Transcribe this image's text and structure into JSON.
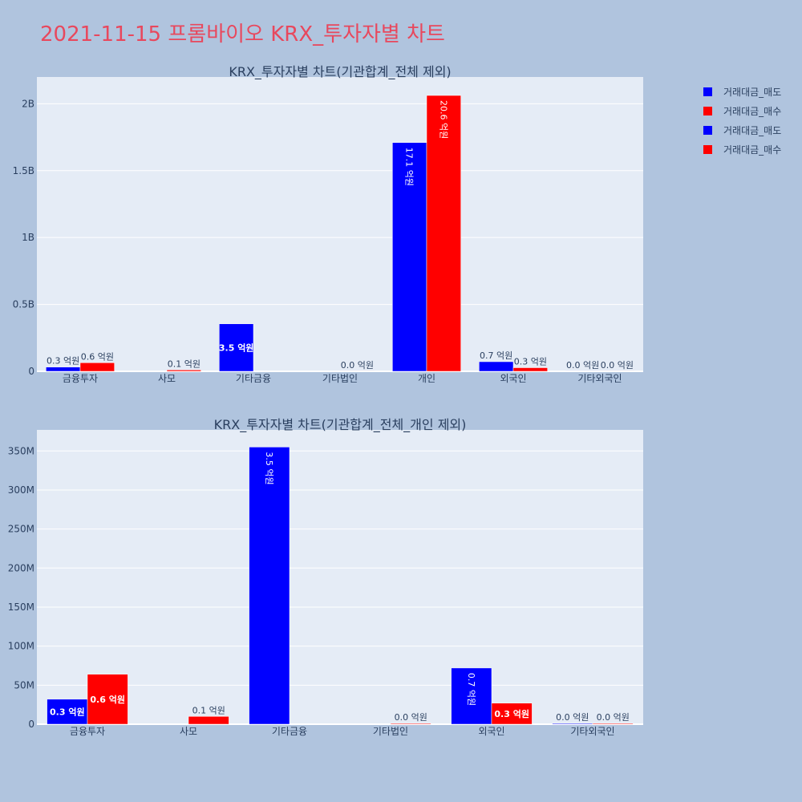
{
  "title": "2021-11-15 프롬바이오 KRX_투자자별 차트",
  "colors": {
    "sell": "#0000ff",
    "buy": "#ff0000",
    "title": "#e8485d",
    "background": "#b0c4de",
    "plot": "#e5ecf6"
  },
  "legend": [
    "거래대금_매도",
    "거래대금_매수",
    "거래대금_매도",
    "거래대금_매수"
  ],
  "chart_data": [
    {
      "type": "bar",
      "title": "KRX_투자자별 차트(기관합계_전체 제외)",
      "categories": [
        "금융투자",
        "사모",
        "기타금융",
        "기타법인",
        "개인",
        "외국인",
        "기타외국인"
      ],
      "ylim": [
        0,
        2200000000
      ],
      "yticks": [
        0,
        500000000,
        1000000000,
        1500000000,
        2000000000
      ],
      "ytick_labels": [
        "0",
        "0.5B",
        "1B",
        "1.5B",
        "2B"
      ],
      "grid": true,
      "series": [
        {
          "name": "거래대금_매도",
          "values": [
            32000000,
            0,
            355000000,
            0,
            1710000000,
            72000000,
            1000000
          ],
          "labels": [
            "0.3 억원",
            "",
            "3.5 억원",
            "",
            "17.1 억원",
            "0.7 억원",
            "0.0 억원"
          ]
        },
        {
          "name": "거래대금_매수",
          "values": [
            64000000,
            10000000,
            0,
            1000000,
            2062000000,
            27000000,
            1000000
          ],
          "labels": [
            "0.6 억원",
            "0.1 억원",
            "",
            "0.0 억원",
            "20.6 억원",
            "0.3 억원",
            "0.0 억원"
          ]
        }
      ]
    },
    {
      "type": "bar",
      "title": "KRX_투자자별 차트(기관합계_전체_개인 제외)",
      "categories": [
        "금융투자",
        "사모",
        "기타금융",
        "기타법인",
        "외국인",
        "기타외국인"
      ],
      "ylim": [
        0,
        377000000
      ],
      "yticks": [
        0,
        50000000,
        100000000,
        150000000,
        200000000,
        250000000,
        300000000,
        350000000
      ],
      "ytick_labels": [
        "0",
        "50M",
        "100M",
        "150M",
        "200M",
        "250M",
        "300M",
        "350M"
      ],
      "grid": true,
      "series": [
        {
          "name": "거래대금_매도",
          "values": [
            32000000,
            0,
            355000000,
            0,
            72000000,
            1000000
          ],
          "labels": [
            "0.3 억원",
            "",
            "3.5 억원",
            "",
            "0.7 억원",
            "0.0 억원"
          ]
        },
        {
          "name": "거래대금_매수",
          "values": [
            64000000,
            10000000,
            0,
            1000000,
            27000000,
            1000000
          ],
          "labels": [
            "0.6 억원",
            "0.1 억원",
            "",
            "0.0 억원",
            "0.3 억원",
            "0.0 억원"
          ]
        }
      ]
    }
  ]
}
